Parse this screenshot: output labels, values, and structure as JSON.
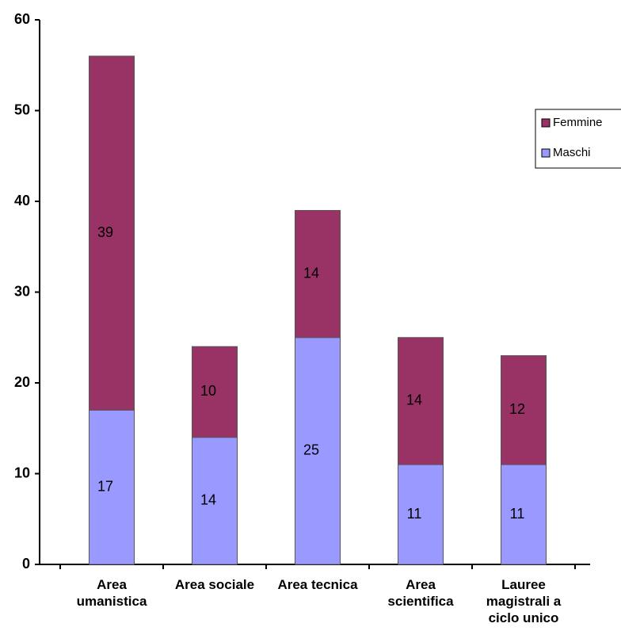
{
  "chart_data": {
    "type": "stacked-bar",
    "categories": [
      "Area umanistica",
      "Area sociale",
      "Area tecnica",
      "Area scientifica",
      "Lauree magistrali a ciclo unico"
    ],
    "series": [
      {
        "name": "Maschi",
        "color": "#9999ff",
        "values": [
          17,
          14,
          25,
          11,
          11
        ]
      },
      {
        "name": "Femmine",
        "color": "#993366",
        "values": [
          39,
          10,
          14,
          14,
          12
        ]
      }
    ],
    "ylim": [
      0,
      60
    ],
    "yticks": [
      0,
      10,
      20,
      30,
      40,
      50,
      60
    ],
    "grid": false,
    "legend": "right"
  }
}
